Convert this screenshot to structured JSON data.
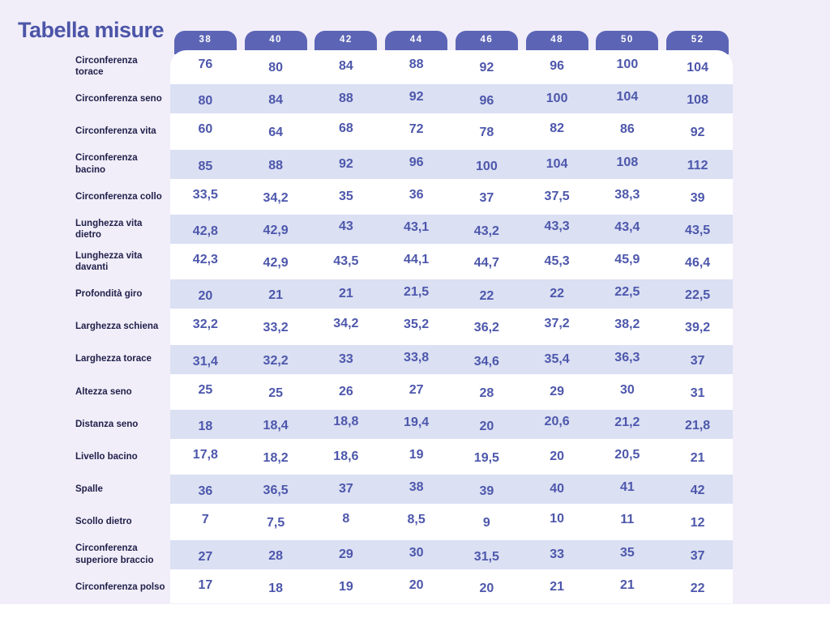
{
  "title": "Tabella misure",
  "table": {
    "sizes": [
      "38",
      "40",
      "42",
      "44",
      "46",
      "48",
      "50",
      "52"
    ],
    "rows": [
      {
        "label": "Circonferenza torace",
        "values": [
          "76",
          "80",
          "84",
          "88",
          "92",
          "96",
          "100",
          "104"
        ]
      },
      {
        "label": "Circonferenza seno",
        "values": [
          "80",
          "84",
          "88",
          "92",
          "96",
          "100",
          "104",
          "108"
        ]
      },
      {
        "label": "Circonferenza vita",
        "values": [
          "60",
          "64",
          "68",
          "72",
          "78",
          "82",
          "86",
          "92"
        ]
      },
      {
        "label": "Circonferenza bacino",
        "values": [
          "85",
          "88",
          "92",
          "96",
          "100",
          "104",
          "108",
          "112"
        ]
      },
      {
        "label": "Circonferenza collo",
        "values": [
          "33,5",
          "34,2",
          "35",
          "36",
          "37",
          "37,5",
          "38,3",
          "39"
        ]
      },
      {
        "label": "Lunghezza vita dietro",
        "values": [
          "42,8",
          "42,9",
          "43",
          "43,1",
          "43,2",
          "43,3",
          "43,4",
          "43,5"
        ]
      },
      {
        "label": "Lunghezza vita davanti",
        "values": [
          "42,3",
          "42,9",
          "43,5",
          "44,1",
          "44,7",
          "45,3",
          "45,9",
          "46,4"
        ]
      },
      {
        "label": "Profondità giro",
        "values": [
          "20",
          "21",
          "21",
          "21,5",
          "22",
          "22",
          "22,5",
          "22,5"
        ]
      },
      {
        "label": "Larghezza schiena",
        "values": [
          "32,2",
          "33,2",
          "34,2",
          "35,2",
          "36,2",
          "37,2",
          "38,2",
          "39,2"
        ]
      },
      {
        "label": "Larghezza torace",
        "values": [
          "31,4",
          "32,2",
          "33",
          "33,8",
          "34,6",
          "35,4",
          "36,3",
          "37"
        ]
      },
      {
        "label": "Altezza seno",
        "values": [
          "25",
          "25",
          "26",
          "27",
          "28",
          "29",
          "30",
          "31"
        ]
      },
      {
        "label": "Distanza seno",
        "values": [
          "18",
          "18,4",
          "18,8",
          "19,4",
          "20",
          "20,6",
          "21,2",
          "21,8"
        ]
      },
      {
        "label": "Livello bacino",
        "values": [
          "17,8",
          "18,2",
          "18,6",
          "19",
          "19,5",
          "20",
          "20,5",
          "21"
        ]
      },
      {
        "label": "Spalle",
        "values": [
          "36",
          "36,5",
          "37",
          "38",
          "39",
          "40",
          "41",
          "42"
        ]
      },
      {
        "label": "Scollo dietro",
        "values": [
          "7",
          "7,5",
          "8",
          "8,5",
          "9",
          "10",
          "11",
          "12"
        ]
      },
      {
        "label": "Circonferenza superiore braccio",
        "values": [
          "27",
          "28",
          "29",
          "30",
          "31,5",
          "33",
          "35",
          "37"
        ]
      },
      {
        "label": "Circonferenza polso",
        "values": [
          "17",
          "18",
          "19",
          "20",
          "20",
          "21",
          "21",
          "22"
        ]
      }
    ]
  },
  "colors": {
    "page_background": "#f1eef9",
    "stripe": "#dbe0f3",
    "tab": "#5c65b5",
    "value_text": "#4d57ab",
    "label_text": "#21214b",
    "title_text": "#4c55a8",
    "card": "#ffffff"
  }
}
